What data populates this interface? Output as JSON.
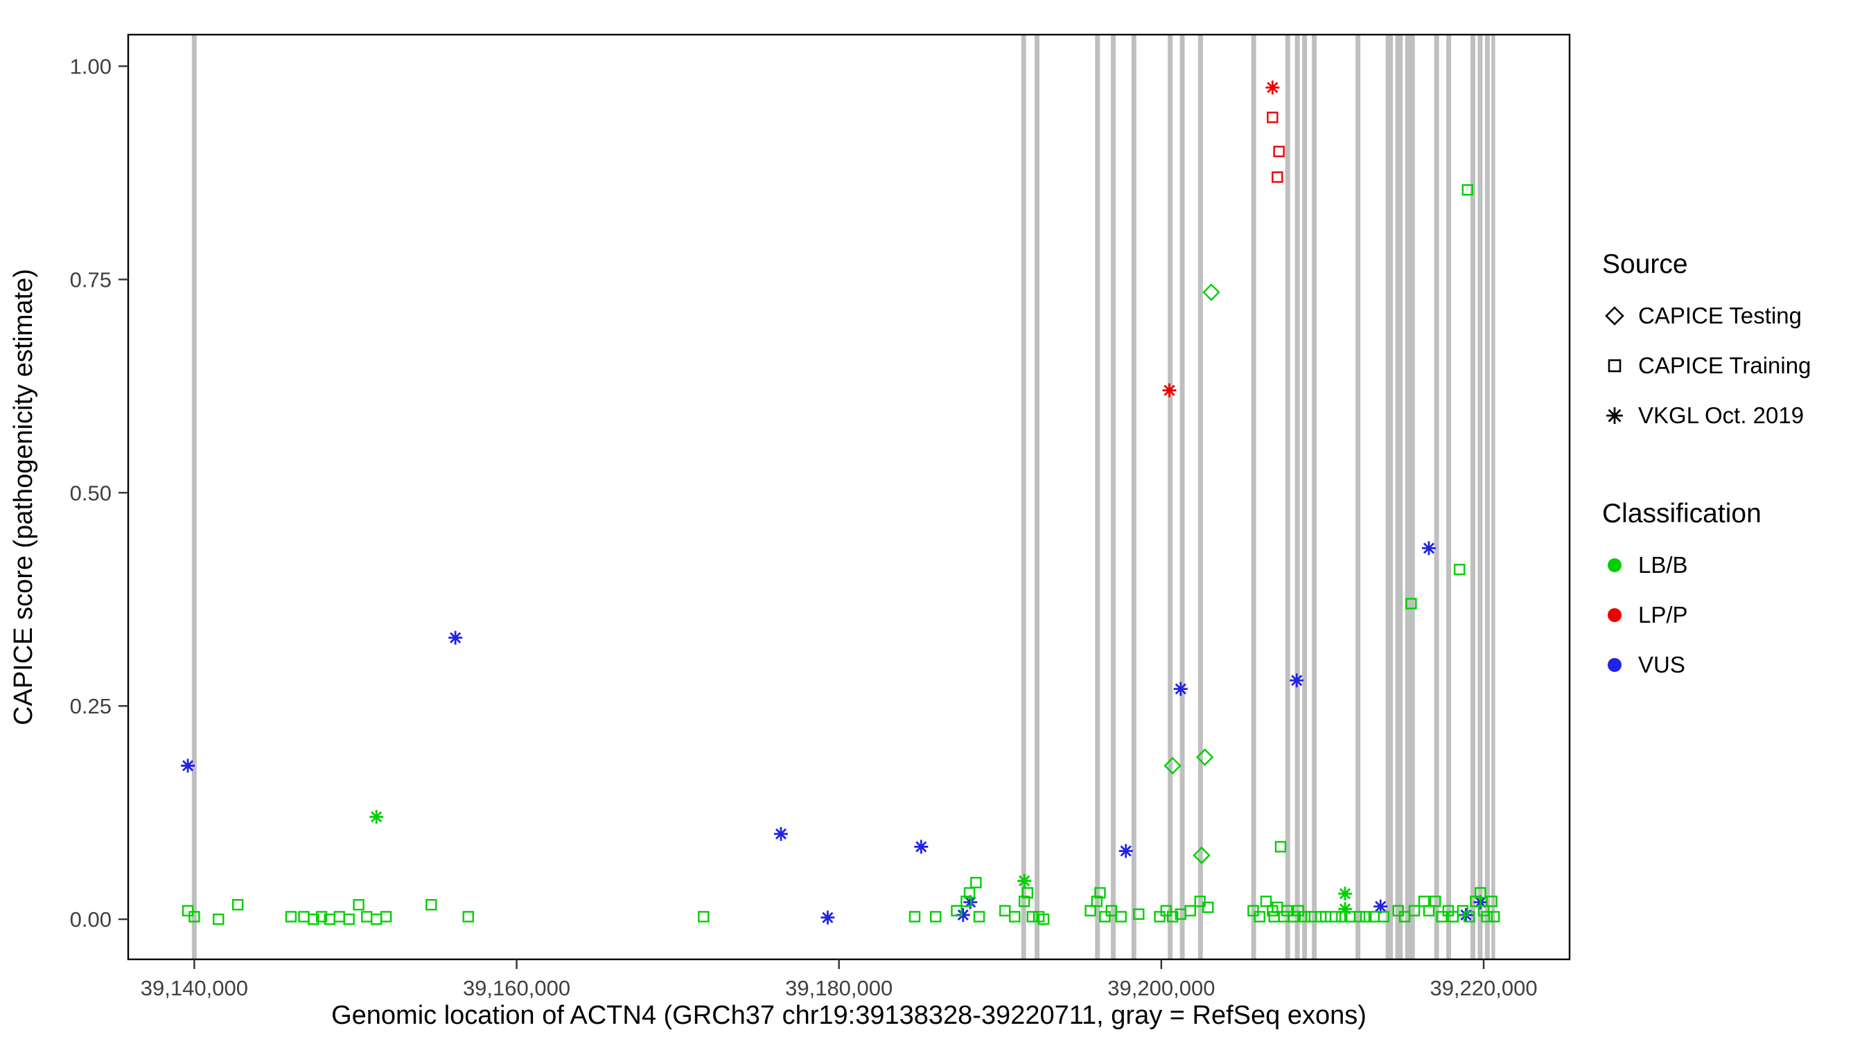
{
  "chart_data": {
    "type": "scatter",
    "title": "",
    "xlabel": "Genomic location of ACTN4 (GRCh37 chr19:39138328-39220711, gray = RefSeq exons)",
    "ylabel": "CAPICE score (pathogenicity estimate)",
    "xlim": [
      39135900,
      39225330
    ],
    "ylim": [
      -0.047,
      1.037
    ],
    "grid": false,
    "x_ticks": [
      {
        "value": 39140000,
        "label": "39,140,000"
      },
      {
        "value": 39160000,
        "label": "39,160,000"
      },
      {
        "value": 39180000,
        "label": "39,180,000"
      },
      {
        "value": 39200000,
        "label": "39,200,000"
      },
      {
        "value": 39220000,
        "label": "39,220,000"
      }
    ],
    "y_ticks": [
      {
        "value": 0.0,
        "label": "0.00"
      },
      {
        "value": 0.25,
        "label": "0.25"
      },
      {
        "value": 0.5,
        "label": "0.50"
      },
      {
        "value": 0.75,
        "label": "0.75"
      },
      {
        "value": 1.0,
        "label": "1.00"
      }
    ],
    "exon_color": "#BFBFBF",
    "exons": [
      [
        39139850,
        39140150
      ],
      [
        39191310,
        39191610
      ],
      [
        39192140,
        39192440
      ],
      [
        39195890,
        39196190
      ],
      [
        39196870,
        39197170
      ],
      [
        39198150,
        39198450
      ],
      [
        39200400,
        39200700
      ],
      [
        39201150,
        39201450
      ],
      [
        39202280,
        39202580
      ],
      [
        39205580,
        39205880
      ],
      [
        39207690,
        39207990
      ],
      [
        39208290,
        39208590
      ],
      [
        39208740,
        39209040
      ],
      [
        39209340,
        39209640
      ],
      [
        39212050,
        39212350
      ],
      [
        39213920,
        39214370
      ],
      [
        39214520,
        39214980
      ],
      [
        39215130,
        39215730
      ],
      [
        39216930,
        39217230
      ],
      [
        39217680,
        39217980
      ],
      [
        39219180,
        39219480
      ],
      [
        39219630,
        39219930
      ],
      [
        39220080,
        39220380
      ],
      [
        39220480,
        39220711
      ]
    ],
    "colors": {
      "LB/B": "#00D000",
      "LP/P": "#EE0000",
      "VUS": "#2222E6"
    },
    "shapes": {
      "CAPICE Testing": "diamond",
      "CAPICE Training": "square",
      "VKGL Oct. 2019": "asterisk"
    },
    "series": [
      {
        "source": "VKGL Oct. 2019",
        "classification": "VUS",
        "points": [
          [
            39139600,
            0.18
          ],
          [
            39156200,
            0.33
          ],
          [
            39176400,
            0.1
          ],
          [
            39179300,
            0.002
          ],
          [
            39185100,
            0.085
          ],
          [
            39187700,
            0.005
          ],
          [
            39188150,
            0.02
          ],
          [
            39197800,
            0.08
          ],
          [
            39201200,
            0.27
          ],
          [
            39208400,
            0.28
          ],
          [
            39213600,
            0.015
          ],
          [
            39216600,
            0.435
          ],
          [
            39218900,
            0.005
          ],
          [
            39219800,
            0.02
          ]
        ]
      },
      {
        "source": "VKGL Oct. 2019",
        "classification": "LB/B",
        "points": [
          [
            39151300,
            0.12
          ],
          [
            39191500,
            0.045
          ],
          [
            39211400,
            0.03
          ],
          [
            39211400,
            0.012
          ]
        ]
      },
      {
        "source": "VKGL Oct. 2019",
        "classification": "LP/P",
        "points": [
          [
            39200500,
            0.62
          ],
          [
            39206900,
            0.975
          ]
        ]
      },
      {
        "source": "CAPICE Testing",
        "classification": "LB/B",
        "points": [
          [
            39200700,
            0.18
          ],
          [
            39202500,
            0.075
          ],
          [
            39202700,
            0.19
          ],
          [
            39203100,
            0.735
          ]
        ]
      },
      {
        "source": "CAPICE Training",
        "classification": "LP/P",
        "points": [
          [
            39206900,
            0.94
          ],
          [
            39207300,
            0.9
          ],
          [
            39207200,
            0.87
          ]
        ]
      },
      {
        "source": "CAPICE Training",
        "classification": "LB/B",
        "points": [
          [
            39139600,
            0.01
          ],
          [
            39140000,
            0.003
          ],
          [
            39141500,
            0.0
          ],
          [
            39142700,
            0.017
          ],
          [
            39146000,
            0.003
          ],
          [
            39146800,
            0.003
          ],
          [
            39147400,
            0.0
          ],
          [
            39147900,
            0.003
          ],
          [
            39148400,
            0.0
          ],
          [
            39149000,
            0.003
          ],
          [
            39149600,
            0.0
          ],
          [
            39150200,
            0.017
          ],
          [
            39150700,
            0.003
          ],
          [
            39151300,
            0.0
          ],
          [
            39151900,
            0.003
          ],
          [
            39154700,
            0.017
          ],
          [
            39157000,
            0.003
          ],
          [
            39171600,
            0.003
          ],
          [
            39184700,
            0.003
          ],
          [
            39186000,
            0.003
          ],
          [
            39187300,
            0.01
          ],
          [
            39187900,
            0.021
          ],
          [
            39188100,
            0.031
          ],
          [
            39188500,
            0.043
          ],
          [
            39188700,
            0.003
          ],
          [
            39190300,
            0.01
          ],
          [
            39190900,
            0.003
          ],
          [
            39191500,
            0.021
          ],
          [
            39191700,
            0.031
          ],
          [
            39192000,
            0.003
          ],
          [
            39192400,
            0.003
          ],
          [
            39192700,
            0.0
          ],
          [
            39195600,
            0.01
          ],
          [
            39196000,
            0.021
          ],
          [
            39196200,
            0.031
          ],
          [
            39196500,
            0.003
          ],
          [
            39196900,
            0.01
          ],
          [
            39197500,
            0.003
          ],
          [
            39198600,
            0.006
          ],
          [
            39199900,
            0.003
          ],
          [
            39200300,
            0.01
          ],
          [
            39200700,
            0.003
          ],
          [
            39201200,
            0.006
          ],
          [
            39201800,
            0.01
          ],
          [
            39202400,
            0.021
          ],
          [
            39202900,
            0.014
          ],
          [
            39205700,
            0.01
          ],
          [
            39206100,
            0.003
          ],
          [
            39206500,
            0.021
          ],
          [
            39206900,
            0.01
          ],
          [
            39207000,
            0.003
          ],
          [
            39207200,
            0.014
          ],
          [
            39207400,
            0.085
          ],
          [
            39207600,
            0.003
          ],
          [
            39207800,
            0.01
          ],
          [
            39208200,
            0.003
          ],
          [
            39208500,
            0.01
          ],
          [
            39208900,
            0.003
          ],
          [
            39209300,
            0.003
          ],
          [
            39209900,
            0.003
          ],
          [
            39210200,
            0.003
          ],
          [
            39210800,
            0.003
          ],
          [
            39211200,
            0.003
          ],
          [
            39211700,
            0.003
          ],
          [
            39212300,
            0.003
          ],
          [
            39212700,
            0.003
          ],
          [
            39213200,
            0.003
          ],
          [
            39213800,
            0.003
          ],
          [
            39214700,
            0.01
          ],
          [
            39215100,
            0.003
          ],
          [
            39215500,
            0.37
          ],
          [
            39215700,
            0.01
          ],
          [
            39216300,
            0.021
          ],
          [
            39216600,
            0.01
          ],
          [
            39217000,
            0.021
          ],
          [
            39217400,
            0.003
          ],
          [
            39217800,
            0.01
          ],
          [
            39218100,
            0.003
          ],
          [
            39218500,
            0.41
          ],
          [
            39218700,
            0.01
          ],
          [
            39219000,
            0.855
          ],
          [
            39219100,
            0.003
          ],
          [
            39219500,
            0.021
          ],
          [
            39219800,
            0.031
          ],
          [
            39220000,
            0.01
          ],
          [
            39220200,
            0.003
          ],
          [
            39220500,
            0.021
          ],
          [
            39220650,
            0.003
          ]
        ]
      }
    ]
  },
  "legend": {
    "source": {
      "title": "Source",
      "items": [
        {
          "label": "CAPICE Testing",
          "shape": "diamond"
        },
        {
          "label": "CAPICE Training",
          "shape": "square"
        },
        {
          "label": "VKGL Oct. 2019",
          "shape": "asterisk"
        }
      ]
    },
    "classification": {
      "title": "Classification",
      "items": [
        {
          "label": "LB/B",
          "color": "#00D000"
        },
        {
          "label": "LP/P",
          "color": "#EE0000"
        },
        {
          "label": "VUS",
          "color": "#2222E6"
        }
      ]
    }
  }
}
